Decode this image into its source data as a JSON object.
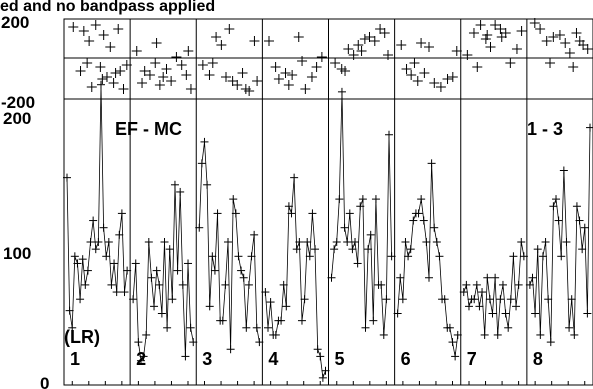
{
  "title_fragment": "ed and no bandpass applied",
  "panel_label": "EF - MC",
  "range_label": "1 - 3",
  "pol_label": "(LR)",
  "top_axis": {
    "tick_labels": [
      "200",
      "-200"
    ],
    "ylim": [
      -200,
      200
    ]
  },
  "main_axis": {
    "tick_labels": [
      "200",
      "100",
      "0"
    ],
    "ylim": [
      0,
      200
    ]
  },
  "chart_data": [
    {
      "type": "scatter",
      "title": "",
      "ylim": [
        -200,
        200
      ],
      "marker": "plus",
      "grid": false,
      "num_columns": 8,
      "points": [
        [
          0,
          0.14,
          160
        ],
        [
          0,
          0.3,
          140
        ],
        [
          0,
          0.38,
          90
        ],
        [
          0,
          0.48,
          170
        ],
        [
          0,
          0.6,
          120
        ],
        [
          0,
          0.7,
          60
        ],
        [
          0,
          0.82,
          150
        ],
        [
          0,
          0.35,
          -20
        ],
        [
          0,
          0.55,
          -40
        ],
        [
          0,
          0.65,
          -90
        ],
        [
          0,
          0.75,
          -120
        ],
        [
          0,
          0.85,
          -60
        ],
        [
          0,
          0.9,
          -150
        ],
        [
          0,
          0.42,
          -140
        ],
        [
          0,
          0.25,
          -60
        ],
        [
          0,
          0.58,
          -100
        ],
        [
          0,
          0.78,
          -70
        ],
        [
          0,
          0.95,
          -30
        ],
        [
          1,
          0.1,
          40
        ],
        [
          1,
          0.22,
          -60
        ],
        [
          1,
          0.3,
          -80
        ],
        [
          1,
          0.45,
          -130
        ],
        [
          1,
          0.55,
          -50
        ],
        [
          1,
          0.62,
          -110
        ],
        [
          1,
          0.7,
          10
        ],
        [
          1,
          0.78,
          -30
        ],
        [
          1,
          0.85,
          -80
        ],
        [
          1,
          0.92,
          -150
        ],
        [
          1,
          0.18,
          -120
        ],
        [
          1,
          0.38,
          -20
        ],
        [
          1,
          0.5,
          -90
        ],
        [
          1,
          0.4,
          80
        ],
        [
          1,
          0.88,
          40
        ],
        [
          2,
          0.1,
          -30
        ],
        [
          2,
          0.2,
          -80
        ],
        [
          2,
          0.3,
          110
        ],
        [
          2,
          0.38,
          70
        ],
        [
          2,
          0.5,
          150
        ],
        [
          2,
          0.55,
          -110
        ],
        [
          2,
          0.62,
          -130
        ],
        [
          2,
          0.7,
          -70
        ],
        [
          2,
          0.8,
          -160
        ],
        [
          2,
          0.88,
          90
        ],
        [
          2,
          0.92,
          -110
        ],
        [
          2,
          0.45,
          -90
        ],
        [
          2,
          0.25,
          -20
        ],
        [
          2,
          0.75,
          -150
        ],
        [
          3,
          0.1,
          90
        ],
        [
          3,
          0.2,
          -40
        ],
        [
          3,
          0.25,
          -100
        ],
        [
          3,
          0.35,
          -70
        ],
        [
          3,
          0.45,
          -80
        ],
        [
          3,
          0.55,
          110
        ],
        [
          3,
          0.65,
          -150
        ],
        [
          3,
          0.75,
          -90
        ],
        [
          3,
          0.82,
          -40
        ],
        [
          3,
          0.9,
          10
        ],
        [
          3,
          0.4,
          -130
        ],
        [
          3,
          0.6,
          -10
        ],
        [
          4,
          0.1,
          -20
        ],
        [
          4,
          0.2,
          -50
        ],
        [
          4,
          0.3,
          50
        ],
        [
          4,
          0.38,
          20
        ],
        [
          4,
          0.45,
          70
        ],
        [
          4,
          0.55,
          100
        ],
        [
          4,
          0.62,
          110
        ],
        [
          4,
          0.7,
          90
        ],
        [
          4,
          0.78,
          150
        ],
        [
          4,
          0.85,
          130
        ],
        [
          4,
          0.25,
          -60
        ],
        [
          4,
          0.5,
          40
        ],
        [
          4,
          0.9,
          20
        ],
        [
          5,
          0.1,
          70
        ],
        [
          5,
          0.18,
          -50
        ],
        [
          5,
          0.25,
          -80
        ],
        [
          5,
          0.35,
          -110
        ],
        [
          5,
          0.45,
          -70
        ],
        [
          5,
          0.52,
          60
        ],
        [
          5,
          0.6,
          -120
        ],
        [
          5,
          0.7,
          -140
        ],
        [
          5,
          0.8,
          -100
        ],
        [
          5,
          0.88,
          -90
        ],
        [
          5,
          0.94,
          40
        ],
        [
          5,
          0.4,
          80
        ],
        [
          5,
          0.3,
          -20
        ],
        [
          6,
          0.1,
          20
        ],
        [
          6,
          0.2,
          130
        ],
        [
          6,
          0.3,
          170
        ],
        [
          6,
          0.38,
          100
        ],
        [
          6,
          0.45,
          60
        ],
        [
          6,
          0.52,
          170
        ],
        [
          6,
          0.6,
          150
        ],
        [
          6,
          0.68,
          130
        ],
        [
          6,
          0.75,
          -20
        ],
        [
          6,
          0.85,
          50
        ],
        [
          6,
          0.92,
          140
        ],
        [
          6,
          0.4,
          120
        ],
        [
          6,
          0.62,
          110
        ],
        [
          6,
          0.25,
          -40
        ],
        [
          7,
          0.12,
          180
        ],
        [
          7,
          0.2,
          150
        ],
        [
          7,
          0.3,
          90
        ],
        [
          7,
          0.4,
          110
        ],
        [
          7,
          0.5,
          120
        ],
        [
          7,
          0.58,
          80
        ],
        [
          7,
          0.65,
          30
        ],
        [
          7,
          0.75,
          130
        ],
        [
          7,
          0.85,
          70
        ],
        [
          7,
          0.92,
          50
        ],
        [
          7,
          0.35,
          -20
        ],
        [
          7,
          0.7,
          -40
        ],
        [
          7,
          0.8,
          90
        ]
      ]
    },
    {
      "type": "line",
      "title": "",
      "ylim": [
        0,
        200
      ],
      "marker": "plus",
      "grid": false,
      "column_labels": [
        "1",
        "2",
        "3",
        "4",
        "5",
        "6",
        "7",
        "8"
      ],
      "series": [
        {
          "values": [
            145,
            52,
            40,
            90,
            85,
            60,
            88,
            70,
            80,
            100,
            115,
            95,
            100,
            210,
            110,
            90,
            100,
            70,
            85,
            65,
            105,
            120,
            65,
            80
          ]
        },
        {
          "values": [
            60,
            85,
            30,
            17,
            20,
            35,
            100,
            75,
            55,
            80,
            70,
            50,
            100,
            40,
            95,
            60,
            140,
            80,
            135,
            70,
            20,
            85,
            40,
            30
          ]
        },
        {
          "values": [
            110,
            155,
            170,
            140,
            55,
            90,
            80,
            120,
            45,
            45,
            70,
            100,
            25,
            130,
            120,
            90,
            80,
            75,
            40,
            70,
            90,
            105,
            40,
            30
          ]
        },
        {
          "values": [
            65,
            40,
            58,
            35,
            35,
            45,
            45,
            70,
            55,
            125,
            120,
            145,
            95,
            100,
            45,
            60,
            100,
            90,
            120,
            95,
            25,
            20,
            5,
            10
          ]
        },
        {
          "values": [
            75,
            95,
            100,
            130,
            205,
            110,
            100,
            120,
            95,
            100,
            85,
            125,
            130,
            40,
            95,
            105,
            45,
            130,
            70,
            70,
            35,
            60,
            175,
            90
          ]
        },
        {
          "values": [
            50,
            75,
            60,
            100,
            90,
            95,
            115,
            120,
            120,
            130,
            115,
            100,
            75,
            155,
            110,
            100,
            90,
            60,
            60,
            40,
            40,
            30,
            20,
            35
          ]
        },
        {
          "values": [
            65,
            70,
            55,
            60,
            60,
            70,
            55,
            65,
            35,
            75,
            60,
            50,
            75,
            35,
            60,
            70,
            50,
            40,
            60,
            90,
            55,
            70,
            100,
            90
          ]
        },
        {
          "values": [
            70,
            75,
            50,
            95,
            35,
            90,
            100,
            60,
            30,
            125,
            130,
            115,
            90,
            150,
            100,
            40,
            60,
            35,
            125,
            115,
            95,
            110,
            50,
            180
          ]
        }
      ]
    }
  ]
}
